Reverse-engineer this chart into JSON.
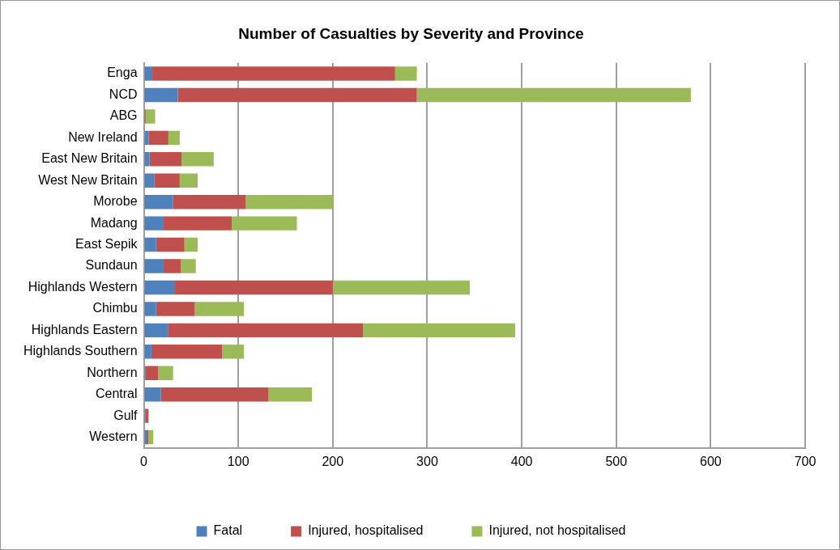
{
  "chart_data": {
    "type": "bar",
    "title": "Number of Casualties by Severity and Province",
    "orientation": "horizontal",
    "stacked": true,
    "categories": [
      "Enga",
      "NCD",
      "ABG",
      "New Ireland",
      "East New Britain",
      "West New Britain",
      "Morobe",
      "Madang",
      "East Sepik",
      "Sundaun",
      "Highlands Western",
      "Chimbu",
      "Highlands Eastern",
      "Highlands Southern",
      "Northern",
      "Central",
      "Gulf",
      "Western"
    ],
    "series": [
      {
        "name": "Fatal",
        "color": "#4f81bd",
        "values": [
          9,
          36,
          null,
          5,
          6,
          11,
          31,
          21,
          13,
          21,
          33,
          13,
          26,
          8,
          2,
          18,
          2,
          3
        ]
      },
      {
        "name": "Injured, hospitalised",
        "color": "#c0504d",
        "values": [
          257,
          253,
          2,
          21,
          34,
          27,
          77,
          72,
          30,
          18,
          167,
          41,
          206,
          75,
          13,
          114,
          3,
          2
        ]
      },
      {
        "name": "Injured, not hospitalised",
        "color": "#9bbb59",
        "values": [
          23,
          290,
          10,
          12,
          34,
          19,
          92,
          69,
          14,
          16,
          145,
          52,
          161,
          23,
          16,
          46,
          0,
          5
        ]
      }
    ],
    "xlim": [
      0,
      700
    ],
    "xticks": [
      0,
      100,
      200,
      300,
      400,
      500,
      600,
      700
    ],
    "grid": "x",
    "legend": "bottom"
  }
}
